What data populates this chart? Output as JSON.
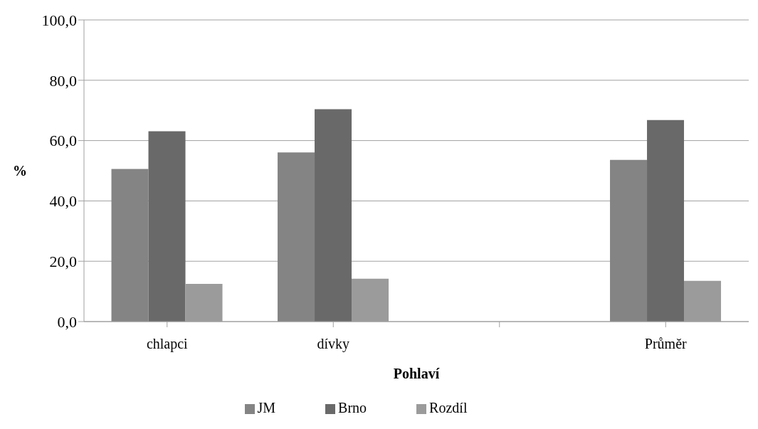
{
  "chart_data": {
    "type": "bar",
    "xlabel": "Pohlaví",
    "ylabel": "%",
    "categories": [
      "chlapci",
      "dívky",
      null,
      "Průměr"
    ],
    "series": [
      {
        "name": "JM",
        "color": "#848484",
        "values": [
          50.6,
          56.1,
          null,
          53.6
        ]
      },
      {
        "name": "Brno",
        "color": "#696969",
        "values": [
          63.1,
          70.4,
          null,
          66.8
        ]
      },
      {
        "name": "Rozdíl",
        "color": "#9b9b9b",
        "values": [
          12.5,
          14.2,
          null,
          13.5
        ]
      }
    ],
    "ylim": [
      0,
      100
    ],
    "yticks": [
      {
        "value": 0,
        "label": "0,0"
      },
      {
        "value": 20,
        "label": "20,0"
      },
      {
        "value": 40,
        "label": "40,0"
      },
      {
        "value": 60,
        "label": "60,0"
      },
      {
        "value": 80,
        "label": "80,0"
      },
      {
        "value": 100,
        "label": "100,0"
      }
    ],
    "grid": "y",
    "legend": "bottom"
  }
}
